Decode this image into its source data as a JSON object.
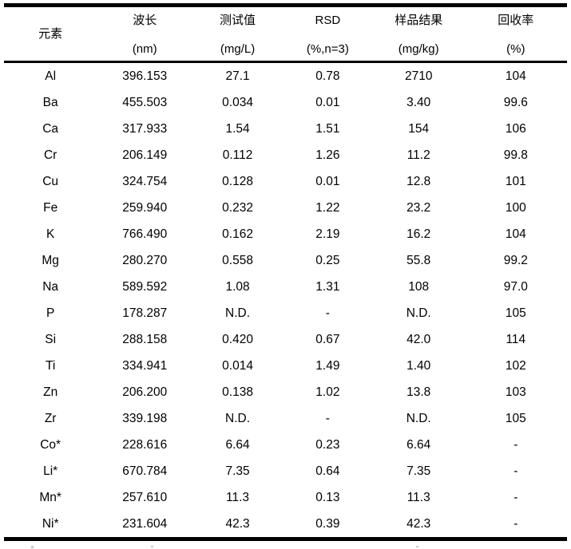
{
  "table": {
    "columns": [
      {
        "label": "元素",
        "unit": ""
      },
      {
        "label": "波长",
        "unit": "(nm)"
      },
      {
        "label": "测试值",
        "unit": "(mg/L)"
      },
      {
        "label": "RSD",
        "unit": "(%,n=3)"
      },
      {
        "label": "样品结果",
        "unit": "(mg/kg)"
      },
      {
        "label": "回收率",
        "unit": "(%)"
      }
    ],
    "rows": [
      [
        "Al",
        "396.153",
        "27.1",
        "0.78",
        "2710",
        "104"
      ],
      [
        "Ba",
        "455.503",
        "0.034",
        "0.01",
        "3.40",
        "99.6"
      ],
      [
        "Ca",
        "317.933",
        "1.54",
        "1.51",
        "154",
        "106"
      ],
      [
        "Cr",
        "206.149",
        "0.112",
        "1.26",
        "11.2",
        "99.8"
      ],
      [
        "Cu",
        "324.754",
        "0.128",
        "0.01",
        "12.8",
        "101"
      ],
      [
        "Fe",
        "259.940",
        "0.232",
        "1.22",
        "23.2",
        "100"
      ],
      [
        "K",
        "766.490",
        "0.162",
        "2.19",
        "16.2",
        "104"
      ],
      [
        "Mg",
        "280.270",
        "0.558",
        "0.25",
        "55.8",
        "99.2"
      ],
      [
        "Na",
        "589.592",
        "1.08",
        "1.31",
        "108",
        "97.0"
      ],
      [
        "P",
        "178.287",
        "N.D.",
        "-",
        "N.D.",
        "105"
      ],
      [
        "Si",
        "288.158",
        "0.420",
        "0.67",
        "42.0",
        "114"
      ],
      [
        "Ti",
        "334.941",
        "0.014",
        "1.49",
        "1.40",
        "102"
      ],
      [
        "Zn",
        "206.200",
        "0.138",
        "1.02",
        "13.8",
        "103"
      ],
      [
        "Zr",
        "339.198",
        "N.D.",
        "-",
        "N.D.",
        "105"
      ],
      [
        "Co*",
        "228.616",
        "6.64",
        "0.23",
        "6.64",
        "-"
      ],
      [
        "Li*",
        "670.784",
        "7.35",
        "0.64",
        "7.35",
        "-"
      ],
      [
        "Mn*",
        "257.610",
        "11.3",
        "0.13",
        "11.3",
        "-"
      ],
      [
        "Ni*",
        "231.604",
        "42.3",
        "0.39",
        "42.3",
        "-"
      ]
    ]
  },
  "colors": {
    "rule": "#000000",
    "text": "#000000",
    "background": "#ffffff"
  }
}
